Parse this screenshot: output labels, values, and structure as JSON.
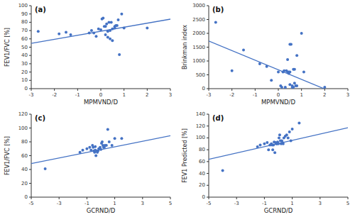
{
  "chart_data": [
    {
      "type": "scatter",
      "title": "(a)",
      "x_label": "MPMVND/D",
      "y_label": "FEV1/FVC [%]",
      "x": [
        -2.7,
        -1.8,
        -1.5,
        -1.3,
        -0.5,
        -0.4,
        -0.3,
        -0.2,
        -0.1,
        0.0,
        0.05,
        0.1,
        0.15,
        0.2,
        0.2,
        0.25,
        0.3,
        0.3,
        0.35,
        0.4,
        0.4,
        0.45,
        0.5,
        0.5,
        0.6,
        0.6,
        0.65,
        0.7,
        0.75,
        0.8,
        0.9,
        1.0,
        2.0
      ],
      "values": [
        69,
        66,
        68,
        65,
        67,
        70,
        67,
        63,
        72,
        71,
        84,
        85,
        75,
        75,
        65,
        78,
        69,
        62,
        80,
        70,
        60,
        80,
        72,
        58,
        75,
        73,
        76,
        76,
        83,
        41,
        90,
        73,
        73
      ],
      "fit": {
        "slope": 4.85,
        "intercept": 69.2
      },
      "color": "#4472C4",
      "grid": false,
      "xlim": [
        -3,
        3
      ],
      "ylim": [
        0,
        100
      ],
      "xticks": [
        -3,
        -2,
        -1,
        0,
        1,
        2,
        3
      ],
      "yticks": [
        0,
        10,
        20,
        30,
        40,
        50,
        60,
        70,
        80,
        90,
        100
      ]
    },
    {
      "type": "scatter",
      "title": "(b)",
      "x_label": "MPMVND/D",
      "y_label": "Brinkman index",
      "x": [
        -2.7,
        -2.0,
        -1.5,
        -0.8,
        -0.5,
        -0.3,
        0.0,
        0.1,
        0.15,
        0.2,
        0.25,
        0.3,
        0.3,
        0.35,
        0.4,
        0.4,
        0.45,
        0.45,
        0.5,
        0.5,
        0.5,
        0.55,
        0.6,
        0.6,
        0.65,
        0.65,
        0.7,
        0.7,
        0.75,
        0.8,
        0.8,
        1.0,
        1.1,
        2.0
      ],
      "values": [
        2400,
        650,
        1400,
        900,
        800,
        300,
        600,
        100,
        50,
        600,
        650,
        0,
        50,
        650,
        600,
        1050,
        550,
        600,
        1600,
        600,
        150,
        1600,
        100,
        50,
        50,
        700,
        700,
        200,
        100,
        100,
        1200,
        2000,
        600,
        50
      ],
      "fit": {
        "slope": -347,
        "intercept": 682
      },
      "color": "#4472C4",
      "grid": false,
      "xlim": [
        -3,
        3
      ],
      "ylim": [
        0,
        3000
      ],
      "xticks": [
        -3,
        -2,
        -1,
        0,
        1,
        2,
        3
      ],
      "yticks": [
        0,
        500,
        1000,
        1500,
        2000,
        2500,
        3000
      ]
    },
    {
      "type": "scatter",
      "title": "(c)",
      "x_label": "GCRND/D",
      "y_label": "FEV1/FVC [%]",
      "x": [
        -4.0,
        -1.5,
        -1.3,
        -1.0,
        -0.8,
        -0.7,
        -0.6,
        -0.55,
        -0.5,
        -0.45,
        -0.4,
        -0.4,
        -0.35,
        -0.3,
        -0.25,
        -0.2,
        -0.15,
        -0.1,
        -0.05,
        0.0,
        0.05,
        0.1,
        0.15,
        0.2,
        0.25,
        0.3,
        0.4,
        0.5,
        0.6,
        0.8,
        1.0,
        1.5
      ],
      "values": [
        41,
        65,
        68,
        70,
        72,
        68,
        75,
        72,
        67,
        65,
        68,
        73,
        60,
        67,
        65,
        67,
        70,
        70,
        72,
        69,
        78,
        80,
        75,
        72,
        72,
        75,
        75,
        98,
        80,
        75,
        85,
        85
      ],
      "fit": {
        "slope": 4.03,
        "intercept": 68.8
      },
      "color": "#4472C4",
      "grid": false,
      "xlim": [
        -5,
        5
      ],
      "ylim": [
        0,
        120
      ],
      "xticks": [
        -5,
        -3,
        -1,
        1,
        3,
        5
      ],
      "yticks": [
        0,
        20,
        40,
        60,
        80,
        100,
        120
      ]
    },
    {
      "type": "scatter",
      "title": "(d)",
      "x_label": "GCRND/D",
      "y_label": "FEV1 Predicted [%]",
      "x": [
        -4.0,
        -1.5,
        -1.3,
        -1.0,
        -0.8,
        -0.7,
        -0.6,
        -0.5,
        -0.45,
        -0.4,
        -0.35,
        -0.3,
        -0.25,
        -0.2,
        -0.15,
        -0.1,
        -0.05,
        0.0,
        0.05,
        0.1,
        0.15,
        0.2,
        0.25,
        0.3,
        0.35,
        0.4,
        0.5,
        0.6,
        0.7,
        0.8,
        0.9,
        1.0,
        1.5
      ],
      "values": [
        45,
        85,
        88,
        90,
        92,
        80,
        88,
        90,
        88,
        80,
        88,
        93,
        75,
        92,
        90,
        90,
        93,
        90,
        100,
        105,
        95,
        90,
        95,
        92,
        90,
        100,
        103,
        105,
        100,
        110,
        95,
        115,
        125
      ],
      "fit": {
        "slope": 5.34,
        "intercept": 90.5
      },
      "color": "#4472C4",
      "grid": false,
      "xlim": [
        -5,
        5
      ],
      "ylim": [
        0,
        140
      ],
      "xticks": [
        -5,
        -3,
        -1,
        1,
        3,
        5
      ],
      "yticks": [
        0,
        20,
        40,
        60,
        80,
        100,
        120,
        140
      ]
    }
  ]
}
